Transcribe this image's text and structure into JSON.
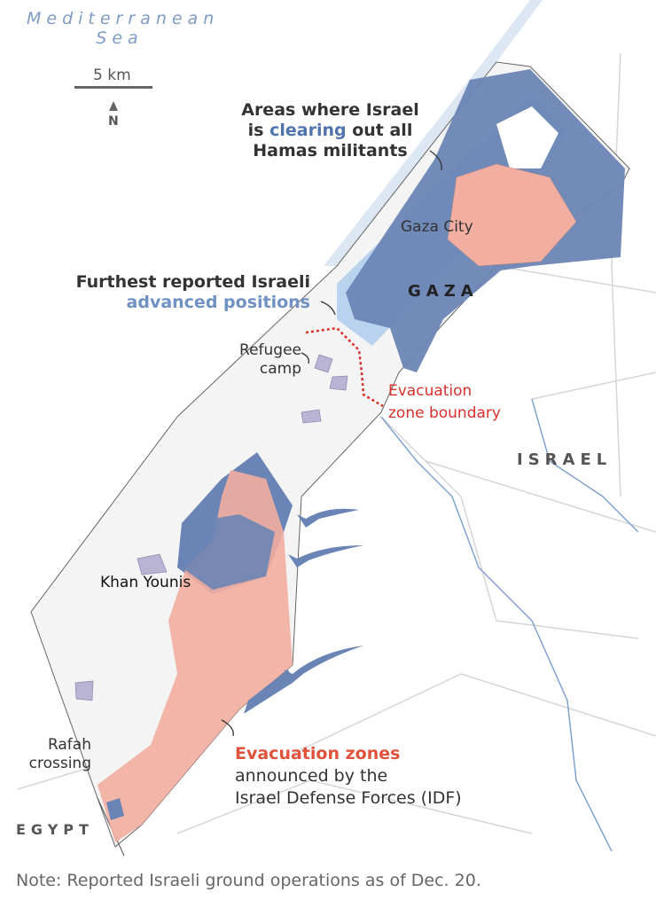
{
  "map": {
    "sea_label": [
      "Mediterranean",
      "Sea"
    ],
    "scale": "5 km",
    "north": "N",
    "countries": {
      "gaza": "GAZA",
      "israel": "ISRAEL",
      "egypt": "EGYPT"
    },
    "places": {
      "gaza_city": "Gaza City",
      "khan_younis": "Khan Younis",
      "refugee_camp": [
        "Refugee",
        "camp"
      ],
      "rafah": [
        "Rafah",
        "crossing"
      ]
    },
    "annotations": {
      "clearing": {
        "pre": "Areas where Israel",
        "is": "is ",
        "highlight": "clearing",
        "post": " out all",
        "line3": "Hamas militants"
      },
      "advanced": {
        "line1": "Furthest reported Israeli",
        "highlight": "advanced positions"
      },
      "boundary": [
        "Evacuation",
        "zone boundary"
      ],
      "evac": {
        "highlight": "Evacuation zones",
        "line2": "announced by the",
        "line3": "Israel Defense Forces (IDF)"
      }
    },
    "colors": {
      "clearing": "#6a85b5",
      "advanced": "#b9d3ee",
      "evacuation": "#f2aea0",
      "boundary": "#d9302c",
      "highlight_blue": "#4f74ad",
      "highlight_red": "#e0523b"
    }
  },
  "note": "Note: Reported Israeli ground operations as of Dec. 20."
}
